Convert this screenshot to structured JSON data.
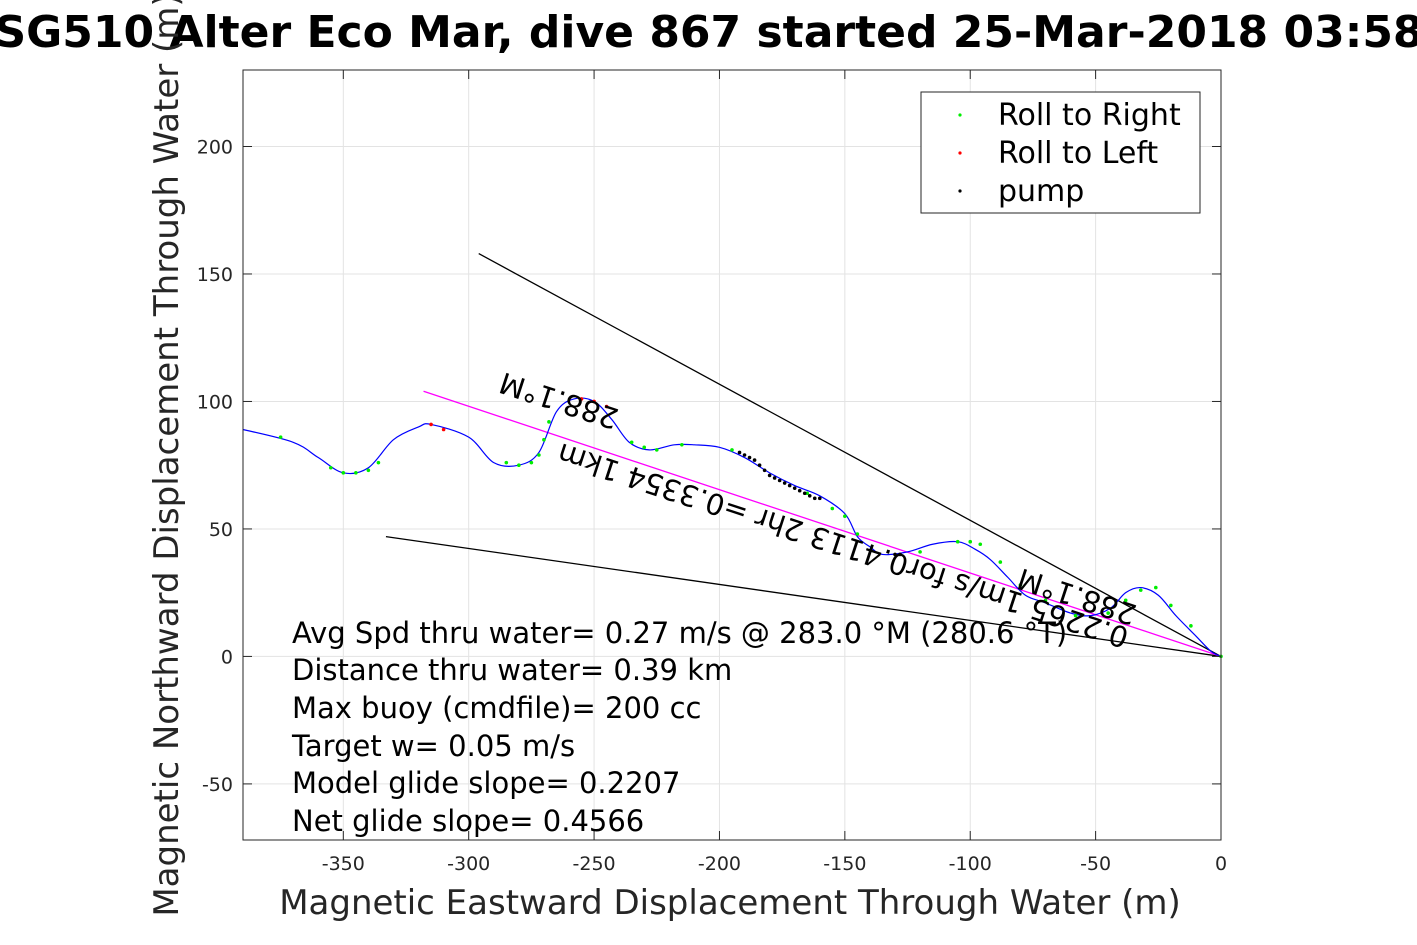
{
  "chart_data": {
    "type": "line",
    "title": "SG510 Alter Eco Mar, dive 867 started 25-Mar-2018 03:58",
    "xlabel": "Magnetic Eastward Displacement Through Water (m)",
    "ylabel": "Magnetic Northward Displacement Through Water (m)",
    "xlim": [
      -390,
      0
    ],
    "ylim": [
      -72,
      230
    ],
    "xticks": [
      -350,
      -300,
      -250,
      -200,
      -150,
      -100,
      -50,
      0
    ],
    "yticks": [
      -50,
      0,
      50,
      100,
      150,
      200
    ],
    "grid": true,
    "legend_position": "top-right",
    "legend": [
      {
        "label": "Roll to Right",
        "color": "#00ee00"
      },
      {
        "label": "Roll to Left",
        "color": "#ff0000"
      },
      {
        "label": "pump",
        "color": "#000000"
      }
    ],
    "track": {
      "color": "#0000ff",
      "x": [
        -390,
        -370,
        -360,
        -350,
        -340,
        -330,
        -320,
        -315,
        -300,
        -290,
        -280,
        -272,
        -265,
        -258,
        -250,
        -243,
        -236,
        -228,
        -218,
        -210,
        -200,
        -190,
        -180,
        -170,
        -160,
        -150,
        -145,
        -140,
        -135,
        -125,
        -115,
        -105,
        -98,
        -92,
        -85,
        -78,
        -70,
        -60,
        -52,
        -44,
        -38,
        -32,
        -25,
        -18,
        -10,
        -4,
        0
      ],
      "y": [
        89,
        84,
        78,
        72,
        74,
        85,
        90,
        91,
        86,
        76,
        75,
        80,
        96,
        101,
        100,
        93,
        84,
        81,
        83,
        83,
        82,
        78,
        72,
        67,
        63,
        56,
        47,
        43,
        40,
        41,
        44,
        45,
        42,
        38,
        31,
        24,
        21,
        17,
        16,
        19,
        25,
        27,
        24,
        16,
        8,
        2,
        0
      ]
    },
    "roll_to_right": {
      "x": [
        -375,
        -355,
        -350,
        -345,
        -340,
        -336,
        -285,
        -280,
        -275,
        -272,
        -270,
        -268,
        -235,
        -230,
        -225,
        -215,
        -195,
        -165,
        -155,
        -150,
        -145,
        -120,
        -105,
        -100,
        -96,
        -88,
        -80,
        -70,
        -58,
        -45,
        -38,
        -32,
        -26,
        -20,
        -12,
        0
      ],
      "y": [
        86,
        74,
        72,
        72,
        73,
        76,
        76,
        75,
        76,
        79,
        85,
        92,
        84,
        82,
        81,
        83,
        81,
        64,
        58,
        55,
        48,
        41,
        45,
        45,
        44,
        37,
        28,
        22,
        16,
        17,
        22,
        26,
        27,
        20,
        12,
        0
      ]
    },
    "roll_to_left": {
      "x": [
        -315,
        -310,
        -255,
        -250,
        -245
      ],
      "y": [
        91,
        89,
        101,
        100,
        98
      ]
    },
    "pump": {
      "x": [
        -192,
        -190,
        -188,
        -186,
        -184,
        -182,
        -180,
        -178,
        -176,
        -174,
        -172,
        -170,
        -168,
        -166,
        -164,
        -162,
        -160,
        -130,
        -128
      ],
      "y": [
        80,
        79,
        78,
        77,
        75,
        73,
        71,
        70,
        69,
        68,
        67,
        66,
        65,
        64,
        63,
        62,
        62,
        40,
        40
      ]
    },
    "heading_line": {
      "x": [
        -318,
        0
      ],
      "y": [
        104,
        0
      ],
      "color": "#ff00ff"
    },
    "cone_upper": {
      "x": [
        -296,
        0
      ],
      "y": [
        158,
        0
      ],
      "color": "#000000"
    },
    "cone_lower": {
      "x": [
        -333,
        0
      ],
      "y": [
        47,
        0
      ],
      "color": "#000000"
    },
    "annotations": {
      "heading_label_1": "288.1°M",
      "heading_label_2": "288.1°M",
      "track_label": "0.2265 1m/s for0.4113 2hr =0.3354 1km"
    },
    "stats": [
      "Avg Spd thru water=  0.27 m/s @ 283.0 °M (280.6 °T)",
      "Distance thru water=  0.39 km",
      "Max buoy (cmdfile)= 200 cc",
      "Target w= 0.05 m/s",
      "Model glide slope= 0.2207",
      "Net glide slope= 0.4566"
    ]
  }
}
